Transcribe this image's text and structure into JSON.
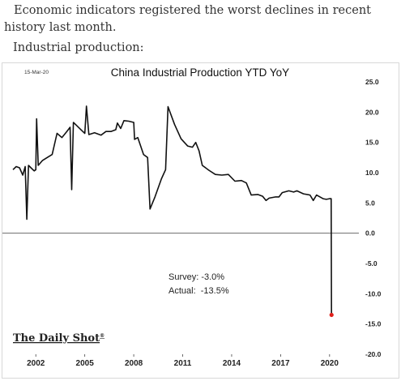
{
  "article": {
    "intro": "Economic indicators registered the worst declines in recent history last month.",
    "subheading": "Industrial production:"
  },
  "chart_data": {
    "type": "line",
    "title": "China Industrial Production YTD YoY",
    "date_stamp": "15-Mar-20",
    "watermark": "The Daily Shot",
    "watermark_mark": "®",
    "xlabel": "",
    "ylabel": "",
    "xlim": [
      2000.5,
      2021.2
    ],
    "ylim": [
      -20,
      25
    ],
    "x_ticks": [
      2002,
      2005,
      2008,
      2011,
      2014,
      2017,
      2020
    ],
    "y_ticks": [
      25,
      20,
      15,
      10,
      5,
      0,
      -5,
      -10,
      -15,
      -20
    ],
    "y_tick_labels": [
      "25.0",
      "20.0",
      "15.0",
      "10.0",
      "5.0",
      "0.0",
      "-5.0",
      "-10.0",
      "-15.0",
      "-20.0"
    ],
    "zero_line": true,
    "annotation": [
      "Survey: -3.0%",
      "Actual:  -13.5%"
    ],
    "colors": {
      "line": "#111111",
      "last_point": "#e0201b",
      "zero_line": "#555555"
    },
    "series": [
      {
        "values": [
          [
            2000.6,
            10.5
          ],
          [
            2000.8,
            11.0
          ],
          [
            2001.0,
            10.8
          ],
          [
            2001.2,
            9.6
          ],
          [
            2001.35,
            11.0
          ],
          [
            2001.45,
            2.3
          ],
          [
            2001.55,
            11.2
          ],
          [
            2001.7,
            10.8
          ],
          [
            2001.9,
            10.3
          ],
          [
            2002.0,
            10.5
          ],
          [
            2002.05,
            18.9
          ],
          [
            2002.15,
            11.2
          ],
          [
            2002.4,
            12.0
          ],
          [
            2002.7,
            12.5
          ],
          [
            2003.0,
            13.0
          ],
          [
            2003.3,
            16.5
          ],
          [
            2003.6,
            15.8
          ],
          [
            2003.9,
            16.8
          ],
          [
            2004.1,
            17.5
          ],
          [
            2004.2,
            7.2
          ],
          [
            2004.3,
            18.3
          ],
          [
            2004.5,
            17.8
          ],
          [
            2004.8,
            17.0
          ],
          [
            2005.0,
            16.5
          ],
          [
            2005.1,
            21.0
          ],
          [
            2005.25,
            16.3
          ],
          [
            2005.6,
            16.6
          ],
          [
            2006.0,
            16.2
          ],
          [
            2006.3,
            16.8
          ],
          [
            2006.6,
            16.8
          ],
          [
            2006.9,
            17.1
          ],
          [
            2007.0,
            18.2
          ],
          [
            2007.2,
            17.3
          ],
          [
            2007.4,
            18.6
          ],
          [
            2007.7,
            18.5
          ],
          [
            2008.0,
            18.3
          ],
          [
            2008.05,
            15.5
          ],
          [
            2008.25,
            15.8
          ],
          [
            2008.6,
            13.0
          ],
          [
            2008.85,
            12.5
          ],
          [
            2009.0,
            4.0
          ],
          [
            2009.3,
            6.0
          ],
          [
            2009.7,
            9.0
          ],
          [
            2009.95,
            10.5
          ],
          [
            2010.1,
            20.9
          ],
          [
            2010.5,
            18.0
          ],
          [
            2010.9,
            15.6
          ],
          [
            2011.3,
            14.4
          ],
          [
            2011.6,
            14.2
          ],
          [
            2011.8,
            15.0
          ],
          [
            2012.0,
            13.6
          ],
          [
            2012.2,
            11.2
          ],
          [
            2012.6,
            10.4
          ],
          [
            2013.0,
            9.7
          ],
          [
            2013.4,
            9.6
          ],
          [
            2013.8,
            9.7
          ],
          [
            2014.2,
            8.6
          ],
          [
            2014.6,
            8.7
          ],
          [
            2014.9,
            8.3
          ],
          [
            2015.2,
            6.3
          ],
          [
            2015.6,
            6.4
          ],
          [
            2015.9,
            6.1
          ],
          [
            2016.1,
            5.4
          ],
          [
            2016.3,
            5.8
          ],
          [
            2016.7,
            6.0
          ],
          [
            2016.9,
            6.0
          ],
          [
            2017.1,
            6.7
          ],
          [
            2017.5,
            7.0
          ],
          [
            2017.8,
            6.8
          ],
          [
            2018.0,
            7.0
          ],
          [
            2018.4,
            6.5
          ],
          [
            2018.8,
            6.3
          ],
          [
            2019.0,
            5.4
          ],
          [
            2019.2,
            6.3
          ],
          [
            2019.6,
            5.7
          ],
          [
            2019.8,
            5.6
          ],
          [
            2020.0,
            5.7
          ],
          [
            2020.1,
            5.7
          ],
          [
            2020.12,
            -13.5
          ]
        ]
      }
    ]
  }
}
